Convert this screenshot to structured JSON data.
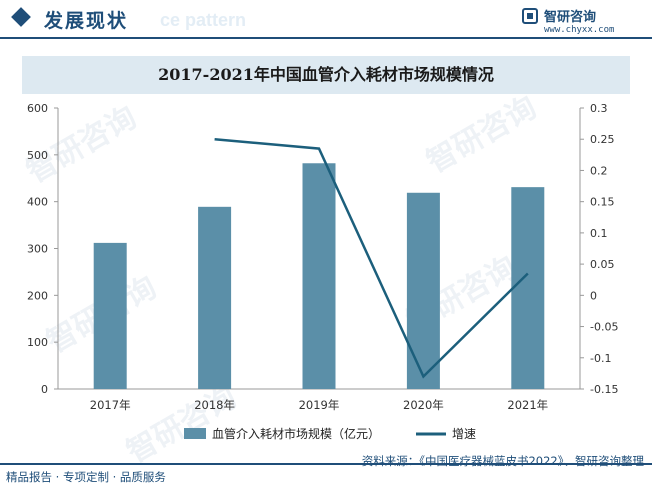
{
  "header": {
    "section_title": "发展现状",
    "ghost_text": "ce pattern",
    "brand_name": "智研咨询",
    "brand_url": "www.chyxx.com"
  },
  "watermark_text": "智研咨询",
  "chart_data": {
    "type": "bar",
    "title": "2017-2021年中国血管介入耗材市场规模情况",
    "categories": [
      "2017年",
      "2018年",
      "2019年",
      "2020年",
      "2021年"
    ],
    "series": [
      {
        "name": "血管介入耗材市场规模（亿元）",
        "type": "bar",
        "axis": "left",
        "values": [
          312,
          389,
          482,
          419,
          431
        ]
      },
      {
        "name": "增速",
        "type": "line",
        "axis": "right",
        "values": [
          null,
          0.25,
          0.235,
          -0.13,
          0.035
        ]
      }
    ],
    "y_left": {
      "min": 0,
      "max": 600,
      "ticks": [
        0,
        100,
        200,
        300,
        400,
        500,
        600
      ]
    },
    "y_right": {
      "min": -0.15,
      "max": 0.3,
      "ticks": [
        "0.3",
        "0.25",
        "0.2",
        "0.15",
        "0.1",
        "0.05",
        "0",
        "-0.05",
        "-0.1",
        "-0.15"
      ]
    },
    "colors": {
      "bar": "#5b8fa8",
      "line": "#1c5f7c",
      "axis": "#999999"
    },
    "legend_position": "bottom"
  },
  "footer": {
    "left_text": "精品报告 · 专项定制 · 品质服务",
    "source_text": "资料来源：《中国医疗器械蓝皮书2022》、智研咨询整理"
  }
}
